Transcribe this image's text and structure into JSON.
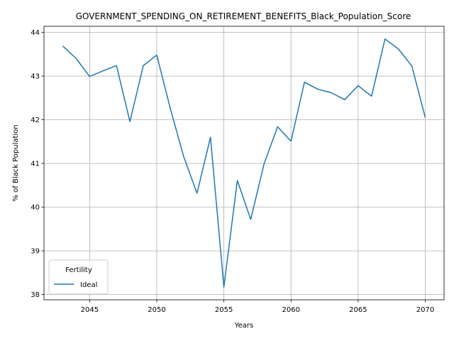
{
  "chart_data": {
    "type": "line",
    "title": "GOVERNMENT_SPENDING_ON_RETIREMENT_BENEFITS_Black_Population_Score",
    "xlabel": "Years",
    "ylabel": "% of Black Population",
    "xlim": [
      2041.6,
      2071.4
    ],
    "ylim": [
      37.88,
      44.14
    ],
    "xticks": [
      2045,
      2050,
      2055,
      2060,
      2065,
      2070
    ],
    "yticks": [
      38,
      39,
      40,
      41,
      42,
      43,
      44
    ],
    "grid": true,
    "legend": {
      "title": "Fertility",
      "position": "lower left"
    },
    "series": [
      {
        "name": "Ideal",
        "color": "#1f77b4",
        "x": [
          2043,
          2044,
          2045,
          2046,
          2047,
          2048,
          2049,
          2050,
          2051,
          2052,
          2053,
          2054,
          2055,
          2056,
          2057,
          2058,
          2059,
          2060,
          2061,
          2062,
          2063,
          2064,
          2065,
          2066,
          2067,
          2068,
          2069,
          2070
        ],
        "y": [
          43.69,
          43.4,
          42.99,
          43.12,
          43.24,
          41.96,
          43.24,
          43.48,
          42.27,
          41.16,
          40.32,
          41.6,
          38.17,
          40.61,
          39.72,
          41.0,
          41.84,
          41.51,
          42.86,
          42.7,
          42.62,
          42.46,
          42.78,
          42.54,
          43.85,
          43.62,
          43.23,
          42.05
        ]
      }
    ]
  }
}
